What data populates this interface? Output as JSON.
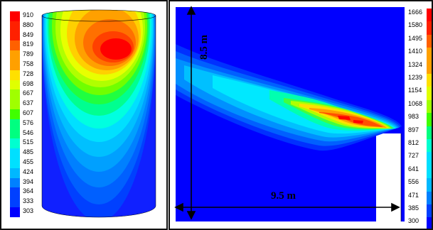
{
  "left_panel": {
    "legend_values": [
      "910",
      "880",
      "849",
      "819",
      "789",
      "758",
      "728",
      "698",
      "667",
      "637",
      "607",
      "576",
      "546",
      "515",
      "485",
      "455",
      "424",
      "394",
      "364",
      "333",
      "303"
    ]
  },
  "right_panel": {
    "legend_values": [
      "1666",
      "1580",
      "1495",
      "1410",
      "1324",
      "1239",
      "1154",
      "1068",
      "983",
      "897",
      "812",
      "727",
      "641",
      "556",
      "471",
      "385",
      "300"
    ],
    "height_label": "8.5 m",
    "width_label": "9.5 m"
  },
  "colors": {
    "scale": [
      "#0000ff",
      "#0040ff",
      "#0080ff",
      "#00b8ff",
      "#00e0ff",
      "#00ffd0",
      "#00ff80",
      "#40ff00",
      "#a0ff00",
      "#e0ff00",
      "#ffe000",
      "#ffa000",
      "#ff6000",
      "#ff2000",
      "#ff0000"
    ]
  }
}
